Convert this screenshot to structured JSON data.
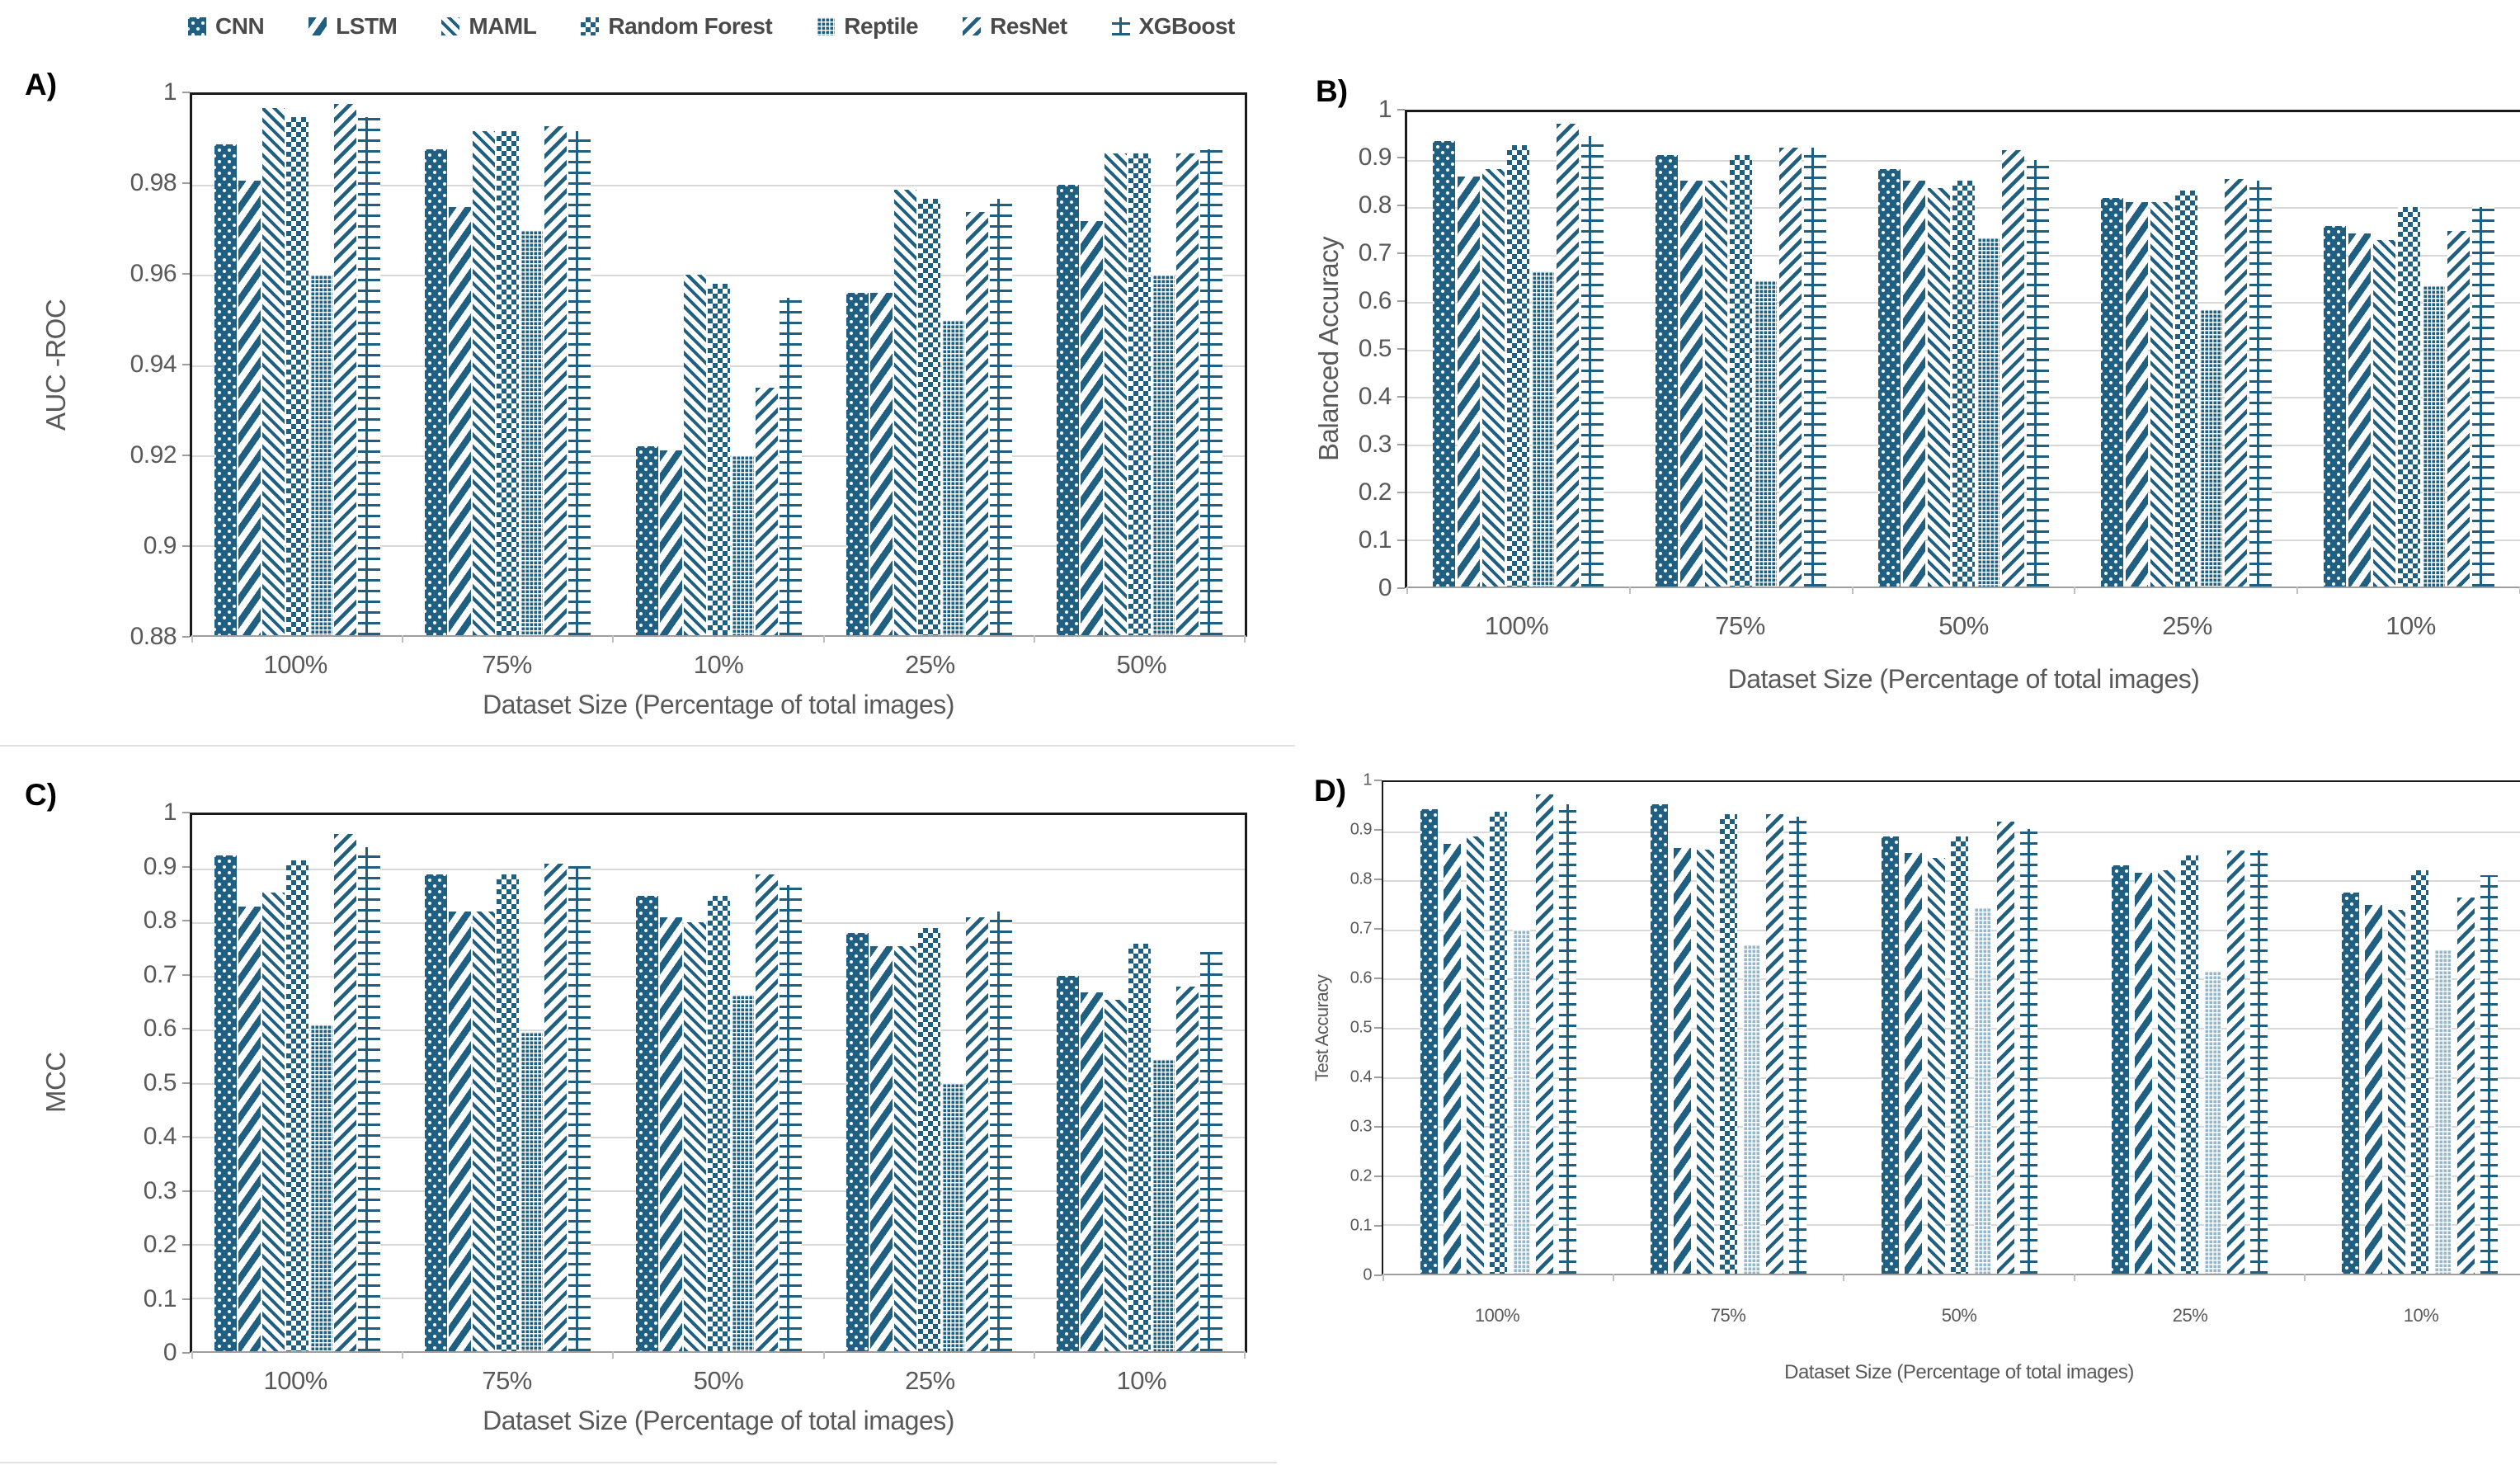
{
  "colors": {
    "series": "#1f5f82",
    "series_light": "#94b7cb",
    "grid": "#d9d9d9",
    "axis": "#9e9e9e",
    "text": "#595959",
    "panel_label": "#000000"
  },
  "legend": {
    "items": [
      {
        "label": "CNN",
        "pattern": "solid-with-white-dots"
      },
      {
        "label": "LSTM",
        "pattern": "thick-diagonal-chevron"
      },
      {
        "label": "MAML",
        "pattern": "thin-diagonal-stripes"
      },
      {
        "label": "Random Forest",
        "pattern": "checkerboard"
      },
      {
        "label": "Reptile",
        "pattern": "fine-grid"
      },
      {
        "label": "ResNet",
        "pattern": "diagonal-stripes"
      },
      {
        "label": "XGBoost",
        "pattern": "brick"
      }
    ]
  },
  "chart_data": [
    {
      "id": "A",
      "panel_label": "A)",
      "type": "bar",
      "title": "",
      "ylabel": "AUC -ROC",
      "xlabel": "Dataset Size (Percentage of total images)",
      "ylim": [
        0.88,
        1
      ],
      "ystep": 0.02,
      "grid": true,
      "legend_position": "top",
      "categories": [
        "100%",
        "75%",
        "10%",
        "25%",
        "50%"
      ],
      "series": [
        {
          "name": "CNN",
          "values": [
            0.989,
            0.988,
            0.922,
            0.956,
            0.98
          ]
        },
        {
          "name": "LSTM",
          "values": [
            0.981,
            0.975,
            0.921,
            0.956,
            0.972
          ]
        },
        {
          "name": "MAML",
          "values": [
            0.997,
            0.992,
            0.96,
            0.979,
            0.987
          ]
        },
        {
          "name": "Random Forest",
          "values": [
            0.995,
            0.992,
            0.958,
            0.977,
            0.987
          ]
        },
        {
          "name": "Reptile",
          "values": [
            0.96,
            0.97,
            0.92,
            0.95,
            0.96
          ]
        },
        {
          "name": "ResNet",
          "values": [
            0.998,
            0.993,
            0.935,
            0.974,
            0.987
          ]
        },
        {
          "name": "XGBoost",
          "values": [
            0.995,
            0.992,
            0.955,
            0.977,
            0.988
          ]
        }
      ]
    },
    {
      "id": "B",
      "panel_label": "B)",
      "type": "bar",
      "title": "",
      "ylabel": "Balanced Accuracy",
      "xlabel": "Dataset Size (Percentage of total images)",
      "ylim": [
        0,
        1
      ],
      "ystep": 0.1,
      "grid": true,
      "legend_position": "top",
      "categories": [
        "100%",
        "75%",
        "50%",
        "25%",
        "10%"
      ],
      "series": [
        {
          "name": "CNN",
          "values": [
            0.94,
            0.91,
            0.88,
            0.82,
            0.76
          ]
        },
        {
          "name": "LSTM",
          "values": [
            0.865,
            0.855,
            0.855,
            0.81,
            0.745
          ]
        },
        {
          "name": "MAML",
          "values": [
            0.88,
            0.855,
            0.84,
            0.81,
            0.73
          ]
        },
        {
          "name": "Random Forest",
          "values": [
            0.93,
            0.91,
            0.855,
            0.835,
            0.8
          ]
        },
        {
          "name": "Reptile",
          "values": [
            0.665,
            0.645,
            0.735,
            0.585,
            0.635
          ]
        },
        {
          "name": "ResNet",
          "values": [
            0.975,
            0.925,
            0.92,
            0.86,
            0.75
          ]
        },
        {
          "name": "XGBoost",
          "values": [
            0.95,
            0.925,
            0.9,
            0.855,
            0.8
          ]
        }
      ]
    },
    {
      "id": "C",
      "panel_label": "C)",
      "type": "bar",
      "title": "",
      "ylabel": "MCC",
      "xlabel": "Dataset Size (Percentage of total images)",
      "ylim": [
        0,
        1
      ],
      "ystep": 0.1,
      "grid": true,
      "legend_position": "top",
      "categories": [
        "100%",
        "75%",
        "50%",
        "25%",
        "10%"
      ],
      "series": [
        {
          "name": "CNN",
          "values": [
            0.925,
            0.89,
            0.85,
            0.78,
            0.7
          ]
        },
        {
          "name": "LSTM",
          "values": [
            0.83,
            0.82,
            0.81,
            0.755,
            0.67
          ]
        },
        {
          "name": "MAML",
          "values": [
            0.855,
            0.82,
            0.8,
            0.755,
            0.655
          ]
        },
        {
          "name": "Random Forest",
          "values": [
            0.915,
            0.89,
            0.85,
            0.79,
            0.76
          ]
        },
        {
          "name": "Reptile",
          "values": [
            0.61,
            0.595,
            0.665,
            0.5,
            0.545
          ]
        },
        {
          "name": "ResNet",
          "values": [
            0.965,
            0.91,
            0.89,
            0.81,
            0.68
          ]
        },
        {
          "name": "XGBoost",
          "values": [
            0.94,
            0.905,
            0.87,
            0.82,
            0.745
          ]
        }
      ]
    },
    {
      "id": "D",
      "panel_label": "D)",
      "type": "bar",
      "title": "",
      "ylabel": "Test Accuracy",
      "xlabel": "Dataset Size (Percentage of total images)",
      "ylim": [
        0,
        1
      ],
      "ystep": 0.1,
      "grid": true,
      "legend_position": "top",
      "categories": [
        "100%",
        "75%",
        "50%",
        "25%",
        "10%"
      ],
      "series": [
        {
          "name": "CNN",
          "values": [
            0.945,
            0.955,
            0.89,
            0.83,
            0.775
          ]
        },
        {
          "name": "LSTM",
          "values": [
            0.875,
            0.865,
            0.855,
            0.815,
            0.75
          ]
        },
        {
          "name": "MAML",
          "values": [
            0.89,
            0.863,
            0.845,
            0.82,
            0.74
          ]
        },
        {
          "name": "Random Forest",
          "values": [
            0.94,
            0.935,
            0.89,
            0.85,
            0.82
          ]
        },
        {
          "name": "Reptile",
          "values": [
            0.7,
            0.67,
            0.745,
            0.615,
            0.66
          ]
        },
        {
          "name": "ResNet",
          "values": [
            0.975,
            0.935,
            0.92,
            0.86,
            0.765
          ]
        },
        {
          "name": "XGBoost",
          "values": [
            0.955,
            0.93,
            0.905,
            0.86,
            0.81
          ]
        }
      ]
    }
  ]
}
